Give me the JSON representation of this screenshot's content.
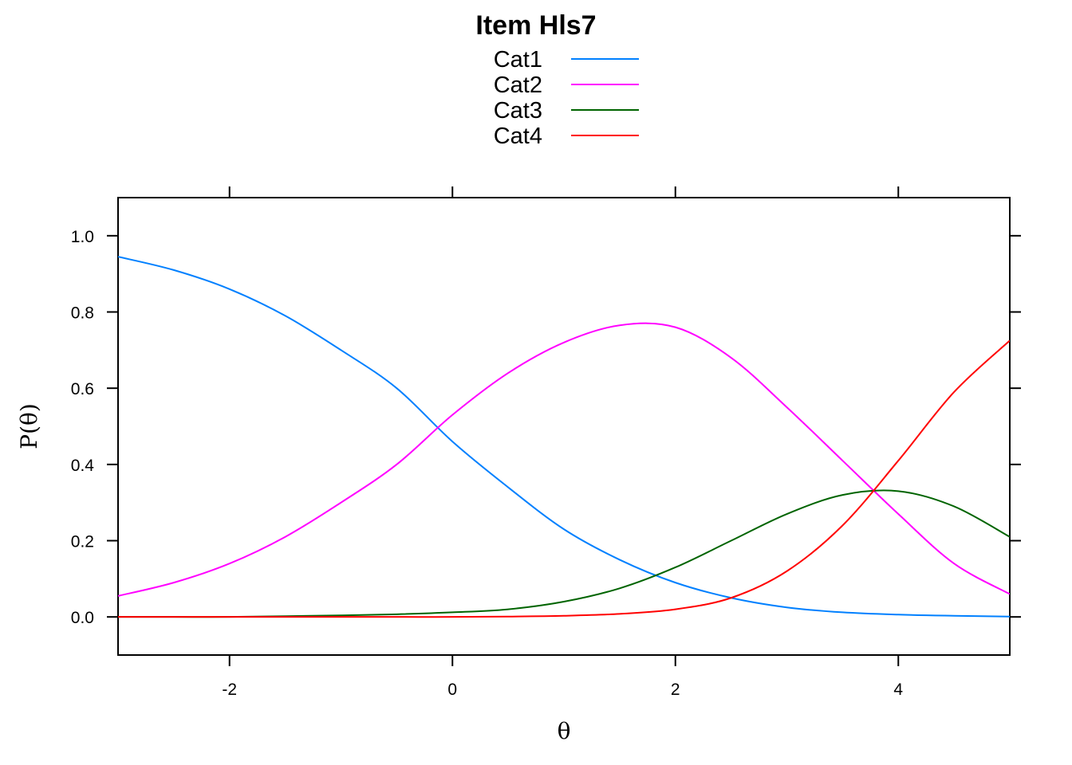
{
  "chart_data": {
    "type": "line",
    "title": "Item Hls7",
    "xlabel": "θ",
    "ylabel": "P(θ)",
    "xlim": [
      -3,
      5
    ],
    "ylim": [
      -0.1,
      1.1
    ],
    "x_ticks": [
      -2,
      0,
      2,
      4
    ],
    "x_tick_labels": [
      "-2",
      "0",
      "2",
      "4"
    ],
    "y_ticks": [
      0,
      0.2,
      0.4,
      0.6,
      0.8,
      1.0
    ],
    "y_tick_labels": [
      "0.0",
      "0.2",
      "0.4",
      "0.6",
      "0.8",
      "1.0"
    ],
    "grid": false,
    "legend_position": "top",
    "x": [
      -3,
      -2.5,
      -2,
      -1.5,
      -1,
      -0.5,
      0,
      0.5,
      1,
      1.5,
      2,
      2.5,
      3,
      3.5,
      4,
      4.5,
      5
    ],
    "series": [
      {
        "name": "Cat1",
        "color": "#0080ff",
        "values": [
          0.945,
          0.91,
          0.86,
          0.79,
          0.7,
          0.6,
          0.46,
          0.34,
          0.23,
          0.15,
          0.09,
          0.05,
          0.025,
          0.012,
          0.006,
          0.003,
          0.001
        ]
      },
      {
        "name": "Cat2",
        "color": "#ff00ff",
        "values": [
          0.055,
          0.09,
          0.14,
          0.21,
          0.3,
          0.4,
          0.53,
          0.64,
          0.72,
          0.765,
          0.76,
          0.68,
          0.55,
          0.41,
          0.27,
          0.14,
          0.06
        ]
      },
      {
        "name": "Cat3",
        "color": "#006400",
        "values": [
          0,
          0,
          0,
          0.002,
          0.004,
          0.007,
          0.012,
          0.02,
          0.04,
          0.075,
          0.13,
          0.2,
          0.27,
          0.32,
          0.33,
          0.29,
          0.21
        ]
      },
      {
        "name": "Cat4",
        "color": "#ff0000",
        "values": [
          0,
          0,
          0,
          0,
          0,
          0,
          0,
          0.001,
          0.003,
          0.008,
          0.02,
          0.05,
          0.12,
          0.24,
          0.41,
          0.59,
          0.725
        ]
      }
    ]
  }
}
